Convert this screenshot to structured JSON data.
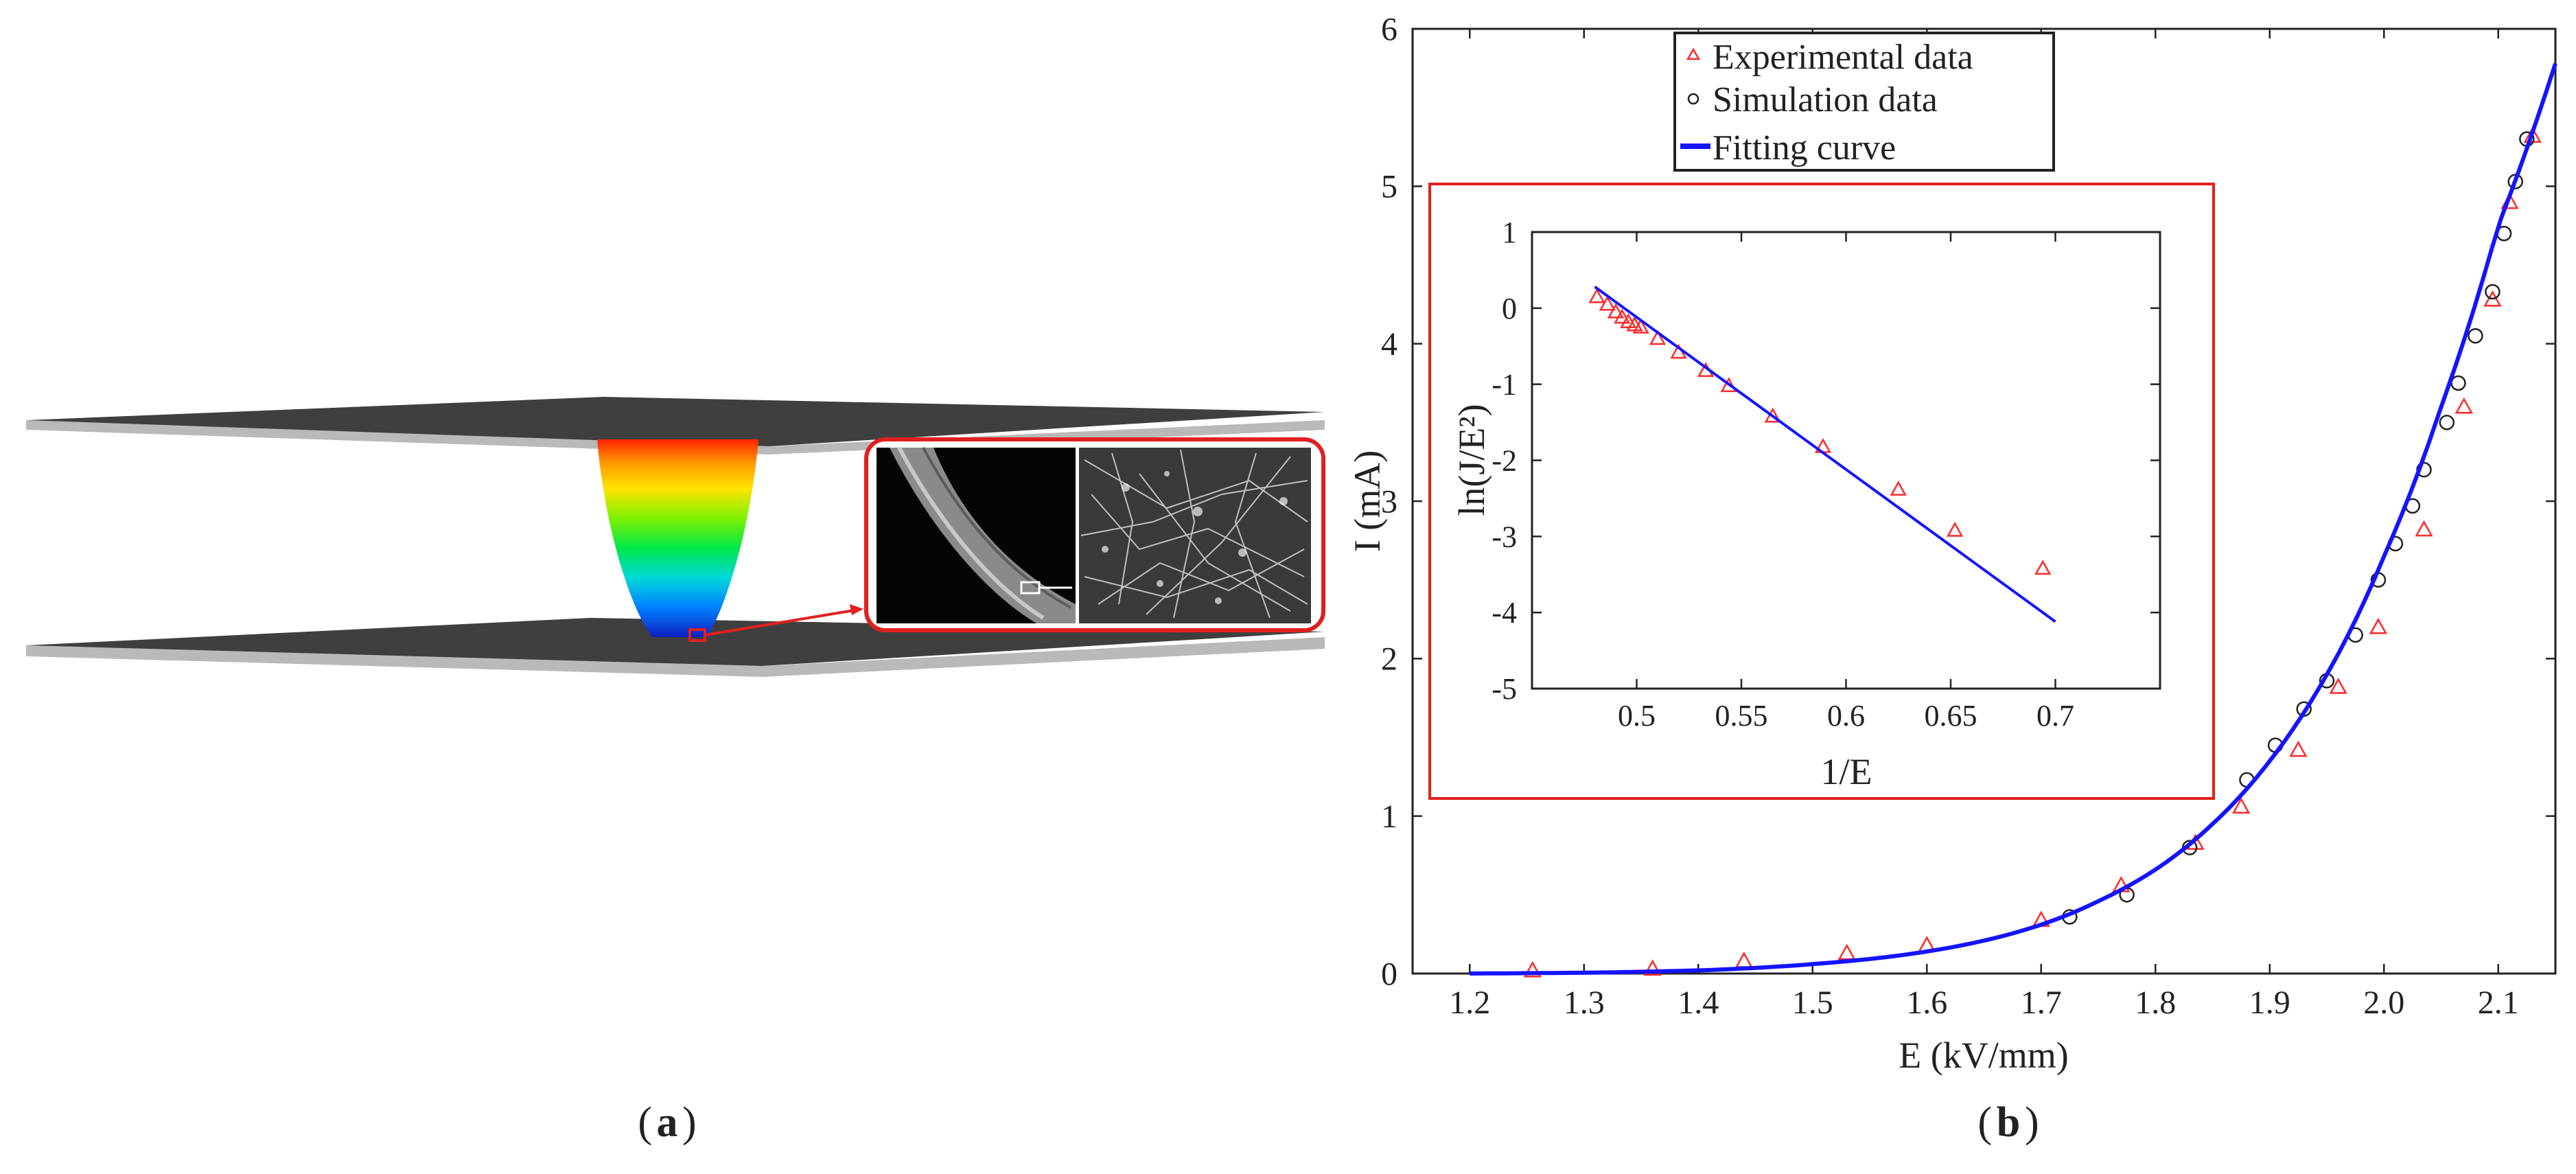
{
  "panel_labels": {
    "a": "a",
    "b": "b"
  },
  "colors": {
    "experimental": "#ff2a2a",
    "simulation": "#222222",
    "fitting": "#1414ff",
    "inset_frame": "#e02020",
    "plate_top": "#3f3f3f",
    "plate_edge": "#b9b9b9"
  },
  "chart_data": [
    {
      "type": "scatter",
      "xlabel": "E (kV/mm)",
      "ylabel": "I (mA)",
      "xlim": [
        1.15,
        2.15
      ],
      "ylim": [
        0,
        6
      ],
      "xticks": [
        "1.2",
        "1.3",
        "1.4",
        "1.5",
        "1.6",
        "1.7",
        "1.8",
        "1.9",
        "2.0",
        "2.1"
      ],
      "yticks": [
        "0",
        "1",
        "2",
        "3",
        "4",
        "5",
        "6"
      ],
      "legend": {
        "position": "top-center",
        "entries": [
          "Experimental data",
          "Simulation data",
          "Fitting curve"
        ]
      },
      "series": [
        {
          "name": "Experimental data",
          "marker": "triangle",
          "x": [
            1.255,
            1.36,
            1.44,
            1.53,
            1.6,
            1.7,
            1.77,
            1.835,
            1.875,
            1.925,
            1.96,
            1.995,
            2.035,
            2.07,
            2.095,
            2.11,
            2.13
          ],
          "y": [
            0.02,
            0.03,
            0.08,
            0.13,
            0.18,
            0.34,
            0.56,
            0.83,
            1.06,
            1.42,
            1.82,
            2.2,
            2.82,
            3.6,
            4.28,
            4.9,
            5.32
          ]
        },
        {
          "name": "Simulation data",
          "marker": "circle",
          "x": [
            1.725,
            1.775,
            1.83,
            1.88,
            1.905,
            1.93,
            1.95,
            1.975,
            1.995,
            2.01,
            2.025,
            2.035,
            2.055,
            2.065,
            2.08,
            2.095,
            2.105,
            2.115,
            2.125
          ],
          "y": [
            0.36,
            0.5,
            0.8,
            1.23,
            1.45,
            1.68,
            1.86,
            2.15,
            2.5,
            2.73,
            2.97,
            3.2,
            3.5,
            3.75,
            4.05,
            4.33,
            4.7,
            5.03,
            5.3
          ]
        },
        {
          "name": "Fitting curve",
          "marker": "line",
          "x": [
            1.2,
            1.3,
            1.4,
            1.5,
            1.6,
            1.7,
            1.75,
            1.8,
            1.85,
            1.9,
            1.95,
            2.0,
            2.05,
            2.1,
            2.15
          ],
          "y": [
            0.0,
            0.005,
            0.02,
            0.06,
            0.14,
            0.31,
            0.46,
            0.66,
            0.95,
            1.35,
            1.9,
            2.65,
            3.6,
            4.75,
            5.78
          ]
        }
      ]
    },
    {
      "type": "scatter",
      "xlabel": "1/E",
      "ylabel": "ln(J/E²)",
      "xlim": [
        0.45,
        0.75
      ],
      "ylim": [
        -5,
        1
      ],
      "xticks": [
        "0.5",
        "0.55",
        "0.6",
        "0.65",
        "0.7"
      ],
      "yticks": [
        "1",
        "0",
        "-1",
        "-2",
        "-3",
        "-4",
        "-5"
      ],
      "series": [
        {
          "name": "Experimental data",
          "marker": "triangle",
          "x": [
            0.481,
            0.486,
            0.49,
            0.493,
            0.496,
            0.499,
            0.502,
            0.51,
            0.52,
            0.533,
            0.544,
            0.565,
            0.589,
            0.625,
            0.652,
            0.694
          ],
          "y": [
            0.15,
            0.05,
            -0.05,
            -0.12,
            -0.18,
            -0.22,
            -0.25,
            -0.4,
            -0.58,
            -0.82,
            -1.02,
            -1.42,
            -1.82,
            -2.38,
            -2.92,
            -3.42
          ]
        },
        {
          "name": "Fitting curve",
          "marker": "line",
          "x": [
            0.48,
            0.7
          ],
          "y": [
            0.28,
            -4.12
          ]
        }
      ]
    }
  ]
}
